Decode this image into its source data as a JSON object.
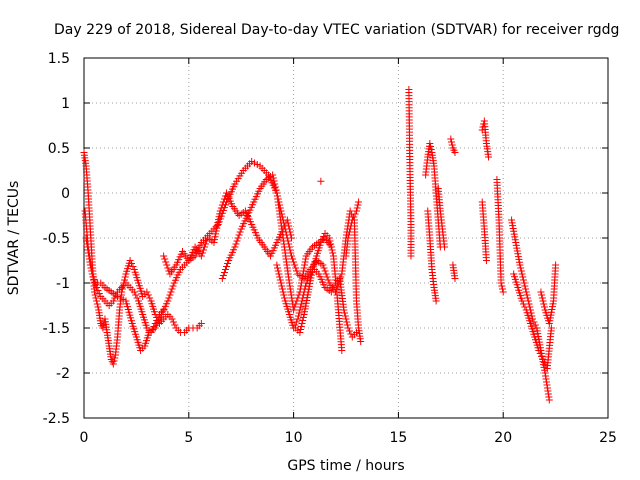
{
  "chart_data": {
    "type": "scatter",
    "title": "Day 229 of 2018, Sidereal Day-to-day VTEC variation (SDTVAR) for receiver rgdg",
    "xlabel": "GPS time / hours",
    "ylabel": "SDTVAR / TECUs",
    "xlim": [
      0,
      25
    ],
    "ylim": [
      -2.5,
      1.5
    ],
    "xticks": [
      0,
      5,
      10,
      15,
      20,
      25
    ],
    "yticks": [
      -2.5,
      -2,
      -1.5,
      -1,
      -0.5,
      0,
      0.5,
      1,
      1.5
    ],
    "xtick_labels": [
      "0",
      "5",
      "10",
      "15",
      "20",
      "25"
    ],
    "ytick_labels": [
      "-2.5",
      "-2",
      "-1.5",
      "-1",
      "-0.5",
      "0",
      "0.5",
      "1",
      "1.5"
    ],
    "grid": true,
    "marker": "+",
    "series_color": "#ff0000",
    "series": [
      {
        "name": "SDTVAR",
        "traces": [
          {
            "x": [
              0.0,
              0.1,
              0.2,
              0.3,
              0.4,
              0.5,
              0.6,
              0.7,
              0.8,
              0.9,
              1.0,
              1.1,
              1.2,
              1.3,
              1.4,
              1.5,
              1.6,
              1.7,
              1.8,
              1.9,
              2.0,
              2.2,
              2.4,
              2.6,
              2.8,
              3.0,
              3.2,
              3.4,
              3.6,
              3.8,
              4.0,
              4.2,
              4.4,
              4.6,
              4.8,
              5.0,
              5.2,
              5.4,
              5.6
            ],
            "y": [
              0.45,
              0.3,
              0.0,
              -0.4,
              -0.8,
              -1.1,
              -1.2,
              -1.3,
              -1.45,
              -1.5,
              -1.4,
              -1.55,
              -1.7,
              -1.85,
              -1.9,
              -1.8,
              -1.6,
              -1.3,
              -1.1,
              -1.0,
              -0.9,
              -0.75,
              -0.85,
              -1.0,
              -1.15,
              -1.1,
              -1.2,
              -1.35,
              -1.45,
              -1.4,
              -1.35,
              -1.4,
              -1.5,
              -1.55,
              -1.55,
              -1.5,
              -1.5,
              -1.5,
              -1.45
            ]
          },
          {
            "x": [
              0.05,
              0.2,
              0.4,
              0.6,
              0.8,
              1.0,
              1.2,
              1.4,
              1.6,
              1.8,
              2.0,
              2.2,
              2.4,
              2.6,
              2.8,
              3.0,
              3.2,
              3.4,
              3.6,
              3.8
            ],
            "y": [
              -0.2,
              -0.6,
              -0.9,
              -1.05,
              -1.15,
              -1.2,
              -1.25,
              -1.2,
              -1.1,
              -1.05,
              -1.0,
              -1.05,
              -1.1,
              -1.2,
              -1.35,
              -1.5,
              -1.55,
              -1.45,
              -1.35,
              -1.3
            ]
          },
          {
            "x": [
              0.1,
              0.3,
              0.5,
              0.8,
              1.0,
              1.3,
              1.6,
              2.0,
              2.3,
              2.5,
              2.7,
              2.9,
              3.1,
              3.4,
              3.7,
              4.0,
              4.3,
              4.6,
              5.0,
              5.3,
              5.6,
              6.0,
              6.4,
              6.8,
              7.2,
              7.6,
              8.0,
              8.4,
              8.8,
              9.2,
              9.5,
              9.8,
              10.0,
              10.3,
              10.6,
              10.9,
              11.2,
              11.5,
              11.8
            ],
            "y": [
              -0.5,
              -0.8,
              -1.0,
              -1.0,
              -1.05,
              -1.1,
              -1.15,
              -1.2,
              -1.45,
              -1.6,
              -1.75,
              -1.7,
              -1.55,
              -1.5,
              -1.35,
              -1.2,
              -1.0,
              -0.85,
              -0.75,
              -0.7,
              -0.55,
              -0.45,
              -0.35,
              -0.1,
              0.1,
              0.25,
              0.35,
              0.3,
              0.2,
              0.0,
              -0.5,
              -1.0,
              -1.3,
              -1.1,
              -0.7,
              -0.6,
              -0.55,
              -0.5,
              -0.6
            ]
          },
          {
            "x": [
              3.8,
              4.1,
              4.4,
              4.7,
              5.0,
              5.3,
              5.6,
              5.9,
              6.2,
              6.5,
              6.8,
              7.1,
              7.4,
              7.7,
              8.0,
              8.3,
              8.6,
              8.9,
              9.2,
              9.5,
              9.7,
              9.9
            ],
            "y": [
              -0.7,
              -0.9,
              -0.8,
              -0.65,
              -0.75,
              -0.6,
              -0.7,
              -0.5,
              -0.55,
              -0.2,
              0.0,
              -0.15,
              -0.25,
              -0.2,
              -0.35,
              -0.5,
              -0.6,
              -0.7,
              -0.55,
              -0.4,
              -0.3,
              -0.5
            ]
          },
          {
            "x": [
              6.6,
              6.9,
              7.2,
              7.5,
              7.8,
              8.1,
              8.4,
              8.7,
              9.0,
              9.3,
              9.6,
              9.9,
              10.2,
              10.5,
              10.8,
              11.1,
              11.4,
              11.7,
              12.0,
              12.3,
              12.5,
              12.7,
              12.9,
              13.0,
              13.1,
              13.2
            ],
            "y": [
              -0.95,
              -0.75,
              -0.6,
              -0.4,
              -0.25,
              -0.1,
              0.05,
              0.15,
              0.2,
              -0.1,
              -0.4,
              -0.7,
              -0.9,
              -0.95,
              -0.85,
              -0.75,
              -0.8,
              -1.0,
              -1.1,
              -0.9,
              -0.5,
              -0.2,
              -0.3,
              -1.2,
              -1.5,
              -1.65
            ]
          },
          {
            "x": [
              9.2,
              9.4,
              9.6,
              9.8,
              10.0,
              10.2,
              10.4,
              10.6,
              10.8,
              11.0,
              11.2,
              11.5,
              11.8,
              12.0,
              12.2,
              12.4,
              12.6,
              12.8,
              13.0
            ],
            "y": [
              -0.8,
              -1.0,
              -1.2,
              -1.35,
              -1.5,
              -1.4,
              -1.2,
              -1.0,
              -0.9,
              -0.85,
              -0.9,
              -1.05,
              -1.1,
              -1.0,
              -0.95,
              -1.3,
              -1.5,
              -1.6,
              -1.55
            ]
          },
          {
            "x": [
              10.1,
              10.3,
              10.5,
              10.7,
              10.9,
              11.1,
              11.3,
              11.5,
              11.7,
              11.9,
              12.1,
              12.3
            ],
            "y": [
              -1.5,
              -1.55,
              -1.35,
              -1.1,
              -0.85,
              -0.7,
              -0.55,
              -0.45,
              -0.5,
              -0.7,
              -1.2,
              -1.75
            ]
          },
          {
            "x": [
              11.3
            ],
            "y": [
              0.13
            ]
          },
          {
            "x": [
              12.5,
              12.6,
              12.8,
              13.0,
              13.1
            ],
            "y": [
              -0.7,
              -0.5,
              -0.3,
              -0.2,
              -0.1
            ]
          },
          {
            "x": [
              15.5,
              15.55,
              15.6,
              15.6
            ],
            "y": [
              1.15,
              0.27,
              -0.35,
              -0.7
            ]
          },
          {
            "x": [
              16.3,
              16.4,
              16.5,
              16.6,
              16.7,
              16.8,
              16.9,
              17.0
            ],
            "y": [
              0.2,
              0.4,
              0.55,
              0.45,
              0.3,
              0.0,
              -0.3,
              -0.6
            ]
          },
          {
            "x": [
              16.4,
              16.5,
              16.6,
              16.7,
              16.8
            ],
            "y": [
              -0.2,
              -0.5,
              -0.85,
              -1.05,
              -1.2
            ]
          },
          {
            "x": [
              16.9,
              17.0,
              17.1,
              17.2
            ],
            "y": [
              0.05,
              -0.2,
              -0.4,
              -0.6
            ]
          },
          {
            "x": [
              17.5,
              17.6,
              17.7
            ],
            "y": [
              0.6,
              0.5,
              0.45
            ]
          },
          {
            "x": [
              17.6,
              17.7
            ],
            "y": [
              -0.8,
              -0.95
            ]
          },
          {
            "x": [
              19.0,
              19.1,
              19.2,
              19.3
            ],
            "y": [
              0.7,
              0.8,
              0.55,
              0.4
            ]
          },
          {
            "x": [
              19.0,
              19.1,
              19.2
            ],
            "y": [
              -0.1,
              -0.4,
              -0.75
            ]
          },
          {
            "x": [
              19.7,
              19.8,
              19.9,
              20.0
            ],
            "y": [
              0.15,
              -0.3,
              -1.0,
              -1.1
            ]
          },
          {
            "x": [
              20.4,
              20.6,
              20.8,
              21.0,
              21.2,
              21.4,
              21.6,
              21.8,
              22.0,
              22.2
            ],
            "y": [
              -0.3,
              -0.55,
              -0.8,
              -1.0,
              -1.2,
              -1.4,
              -1.5,
              -1.75,
              -2.0,
              -2.3
            ]
          },
          {
            "x": [
              20.5,
              20.7,
              20.9,
              21.1,
              21.3,
              21.5,
              21.7,
              21.9,
              22.1,
              22.3
            ],
            "y": [
              -0.9,
              -1.05,
              -1.2,
              -1.3,
              -1.45,
              -1.6,
              -1.75,
              -1.85,
              -1.95,
              -1.5
            ]
          },
          {
            "x": [
              21.8,
              22.0,
              22.2,
              22.4,
              22.5
            ],
            "y": [
              -1.1,
              -1.3,
              -1.45,
              -1.2,
              -0.8
            ]
          }
        ]
      }
    ]
  }
}
